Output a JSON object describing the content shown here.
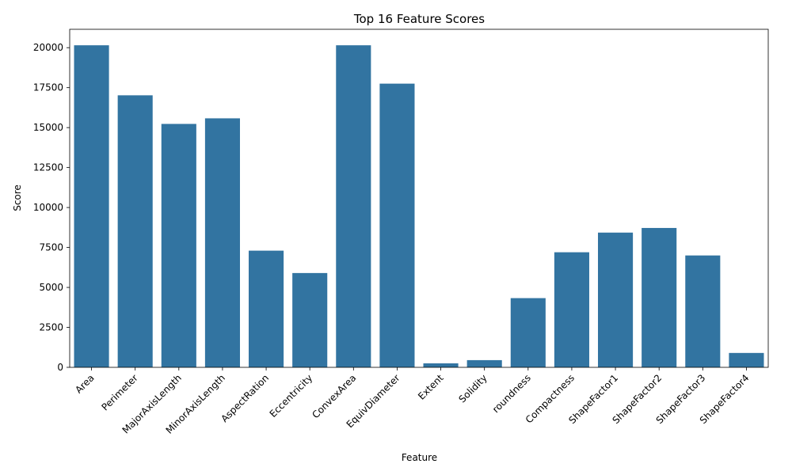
{
  "chart_data": {
    "type": "bar",
    "title": "Top 16 Feature Scores",
    "xlabel": "Feature",
    "ylabel": "Score",
    "categories": [
      "Area",
      "Perimeter",
      "MajorAxisLength",
      "MinorAxisLength",
      "AspectRation",
      "Eccentricity",
      "ConvexArea",
      "EquivDiameter",
      "Extent",
      "Solidity",
      "roundness",
      "Compactness",
      "ShapeFactor1",
      "ShapeFactor2",
      "ShapeFactor3",
      "ShapeFactor4"
    ],
    "values": [
      20150,
      17020,
      15230,
      15580,
      7300,
      5900,
      20150,
      17750,
      250,
      450,
      4330,
      7200,
      8430,
      8720,
      7000,
      900
    ],
    "ylim": [
      0,
      21150
    ],
    "yticks": [
      "0",
      "2500",
      "5000",
      "7500",
      "10000",
      "12500",
      "15000",
      "17500",
      "20000"
    ],
    "bar_color": "#3274a1",
    "grid": false,
    "legend": "none"
  }
}
